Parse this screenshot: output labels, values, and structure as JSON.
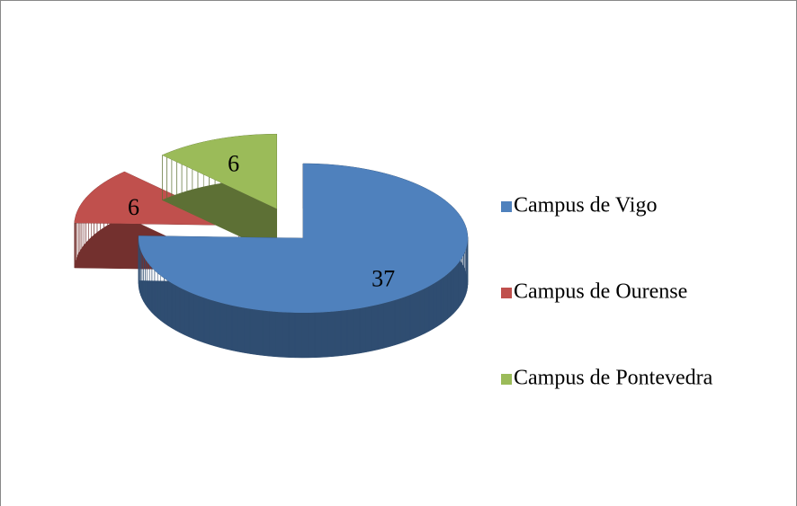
{
  "chart_data": {
    "type": "pie",
    "categories": [
      "Campus de Vigo",
      "Campus de Ourense",
      "Campus de Pontevedra"
    ],
    "values": [
      37,
      6,
      6
    ],
    "colors": [
      "#4f81bd",
      "#c0504d",
      "#9bbb59"
    ],
    "legend": "right",
    "exploded": [
      false,
      true,
      true
    ]
  }
}
